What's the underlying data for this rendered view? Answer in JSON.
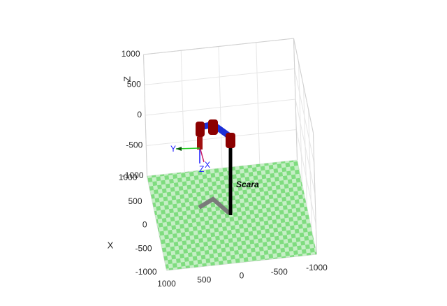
{
  "chart_data": {
    "type": "robot3d",
    "robot_name": "Scara",
    "xlabel": "X",
    "zlabel": "Z",
    "frame_labels": [
      "Y",
      "Z",
      "X"
    ],
    "xlim": [
      -1000,
      1000
    ],
    "ylim": [
      -1000,
      1000
    ],
    "zlim": [
      -1000,
      1000
    ],
    "xticks": [
      -1000,
      -500,
      0,
      500,
      1000
    ],
    "yticks": [
      -1000,
      -500,
      0,
      500,
      1000
    ],
    "zticks": [
      -1000,
      -500,
      0,
      500,
      1000
    ],
    "grid": true
  }
}
